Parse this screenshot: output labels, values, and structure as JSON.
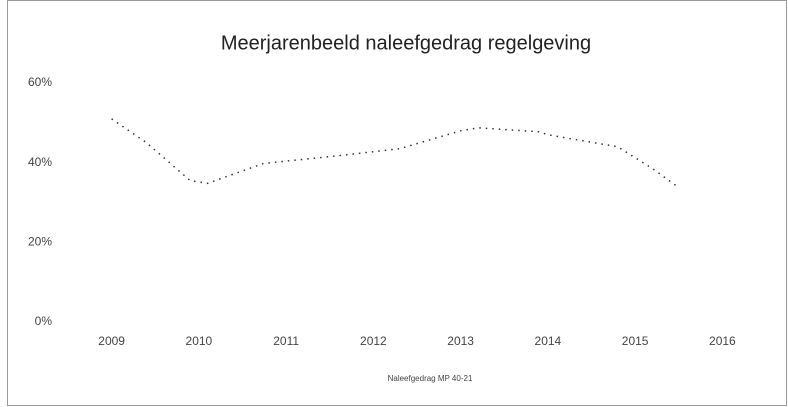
{
  "chart_data": {
    "type": "line",
    "title": "Meerjarenbeeld naleefgedrag regelgeving",
    "x": [
      2009,
      2009.4,
      2009.9,
      2010.1,
      2010.74,
      2011.6,
      2012.3,
      2013,
      2013.2,
      2013.9,
      2014,
      2014.8,
      2015.2,
      2015.5
    ],
    "series": [
      {
        "name": "Naleefgedrag MP 40-21",
        "color": "#333333",
        "values": [
          51,
          45,
          35.5,
          34.8,
          39.8,
          41.75,
          43.5,
          48,
          48.75,
          47.75,
          47,
          44,
          38.5,
          33.75
        ]
      }
    ],
    "xlim": [
      2008.5,
      2016.5
    ],
    "xticks": [
      2009,
      2010,
      2011,
      2012,
      2013,
      2014,
      2015,
      2016
    ],
    "ylim": [
      0,
      60
    ],
    "yticks": [
      {
        "value": 0,
        "label": "0%"
      },
      {
        "value": 20,
        "label": "20%"
      },
      {
        "value": 40,
        "label": "40%"
      },
      {
        "value": 60,
        "label": "60%"
      }
    ],
    "grid": false,
    "legend": "bottom"
  }
}
